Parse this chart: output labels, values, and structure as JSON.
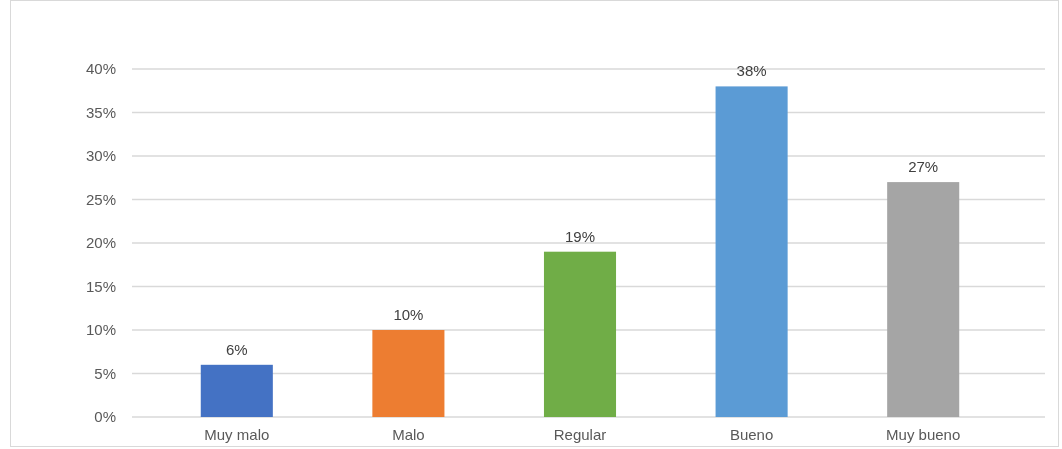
{
  "chart_data": {
    "type": "bar",
    "categories": [
      "Muy malo",
      "Malo",
      "Regular",
      "Bueno",
      "Muy bueno"
    ],
    "values": [
      6,
      10,
      19,
      38,
      27
    ],
    "colors": [
      "#4472c4",
      "#ed7d31",
      "#70ad47",
      "#5b9bd5",
      "#a5a5a5"
    ],
    "value_labels": [
      "6%",
      "10%",
      "19%",
      "38%",
      "27%"
    ],
    "ylim": [
      0,
      40
    ],
    "yticks": [
      {
        "value": 0,
        "label": "0%"
      },
      {
        "value": 5,
        "label": "5%"
      },
      {
        "value": 10,
        "label": "10%"
      },
      {
        "value": 15,
        "label": "15%"
      },
      {
        "value": 20,
        "label": "20%"
      },
      {
        "value": 25,
        "label": "25%"
      },
      {
        "value": 30,
        "label": "30%"
      },
      {
        "value": 35,
        "label": "35%"
      },
      {
        "value": 40,
        "label": "40%"
      }
    ],
    "grid": true
  }
}
